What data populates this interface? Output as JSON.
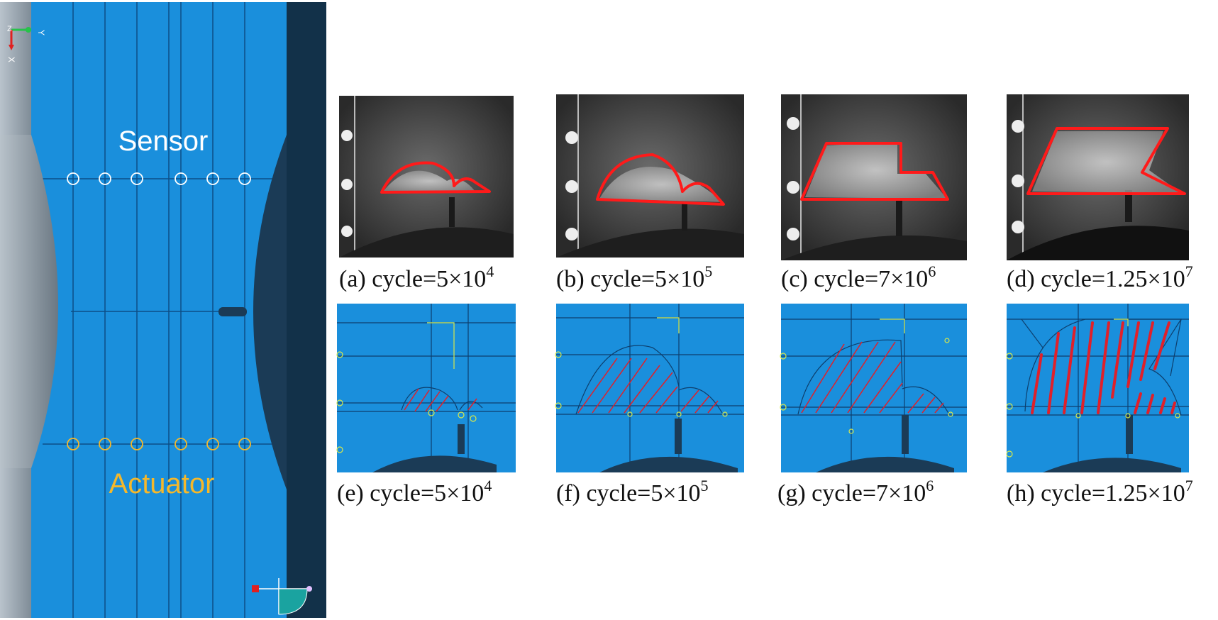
{
  "model": {
    "sensor_label": "Sensor",
    "actuator_label": "Actuator",
    "sensor_color": "#ffffff",
    "actuator_color": "#f5b82a",
    "axis_labels": {
      "y": "Y",
      "x": "X",
      "z": "Z"
    }
  },
  "panels": [
    {
      "label": "(a)",
      "prefix": " cycle=",
      "mantissa": "5×10",
      "exponent": "4"
    },
    {
      "label": "(b)",
      "prefix": " cycle=",
      "mantissa": "5×10",
      "exponent": "5"
    },
    {
      "label": "(c)",
      "prefix": " cycle=",
      "mantissa": "7×10",
      "exponent": "6"
    },
    {
      "label": "(d)",
      "prefix": " cycle=",
      "mantissa": "1.25×10",
      "exponent": "7"
    },
    {
      "label": "(e)",
      "prefix": " cycle=",
      "mantissa": "5×10",
      "exponent": "4"
    },
    {
      "label": "(f)",
      "prefix": " cycle=",
      "mantissa": "5×10",
      "exponent": "5"
    },
    {
      "label": "(g)",
      "prefix": " cycle=",
      "mantissa": "7×10",
      "exponent": "6"
    },
    {
      "label": "(h)",
      "prefix": " cycle=",
      "mantissa": "1.25×10",
      "exponent": "7"
    }
  ],
  "colors": {
    "fe_blue": "#1a8fdc",
    "dark_navy": "#1b3b56",
    "damage_red": "#e0202a",
    "photo_bg": "#3a3a3a"
  }
}
